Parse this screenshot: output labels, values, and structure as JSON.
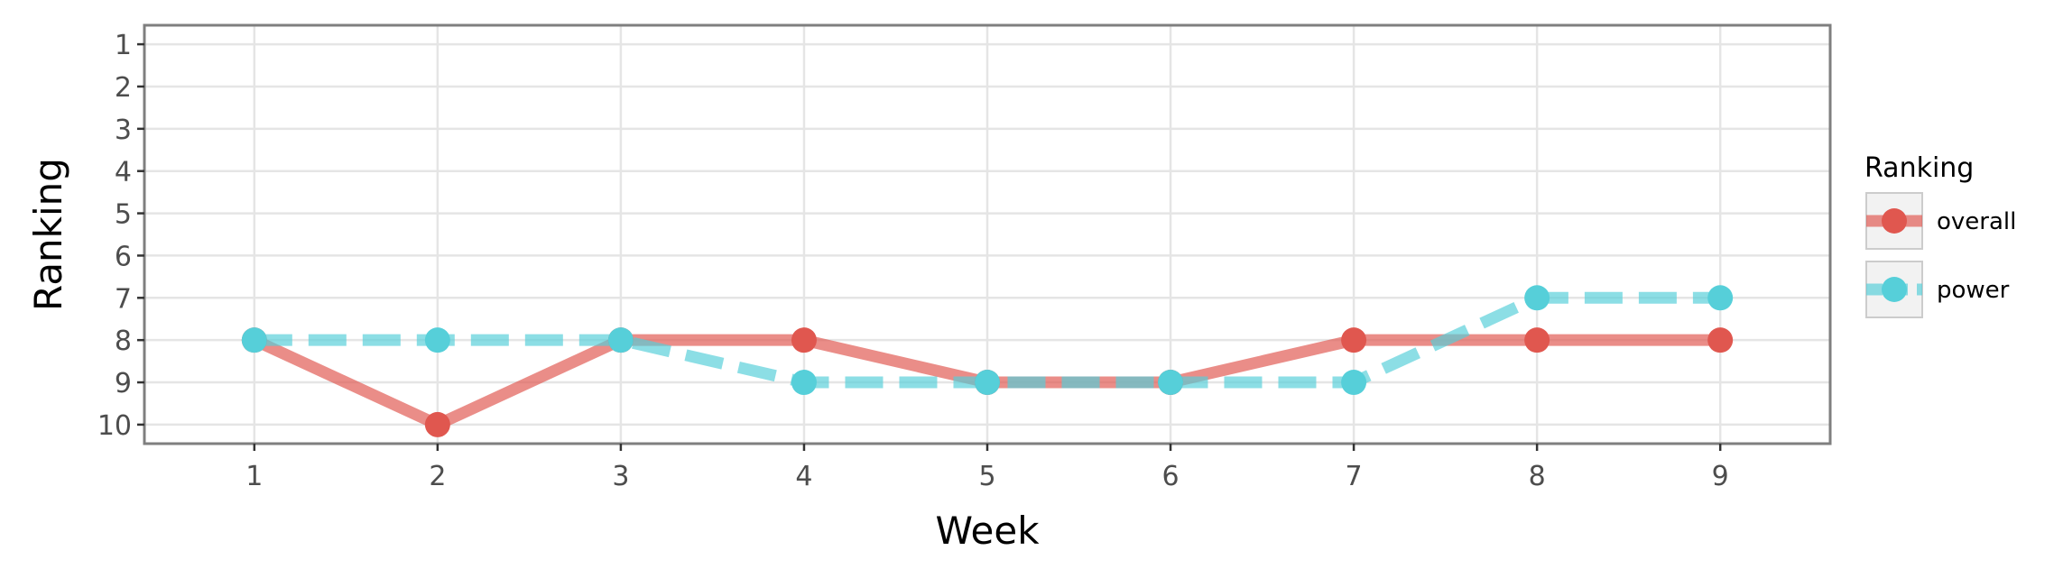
{
  "chart_data": {
    "type": "line",
    "title": "",
    "xlabel": "Week",
    "ylabel": "Ranking",
    "x": [
      1,
      2,
      3,
      4,
      5,
      6,
      7,
      8,
      9
    ],
    "xlim": [
      0.4,
      9.6
    ],
    "ylim": [
      10.45,
      0.55
    ],
    "y_reversed": true,
    "yticks": [
      1,
      2,
      3,
      4,
      5,
      6,
      7,
      8,
      9,
      10
    ],
    "grid": true,
    "legend": {
      "title": "Ranking",
      "placement": "right"
    },
    "series": [
      {
        "name": "overall",
        "values": [
          8,
          10,
          8,
          8,
          9,
          9,
          8,
          8,
          8
        ],
        "color": "#e0574f",
        "linestyle": "solid"
      },
      {
        "name": "power",
        "values": [
          8,
          8,
          8,
          9,
          9,
          9,
          9,
          7,
          7
        ],
        "color": "#56cfd9",
        "linestyle": "dashed"
      }
    ]
  }
}
